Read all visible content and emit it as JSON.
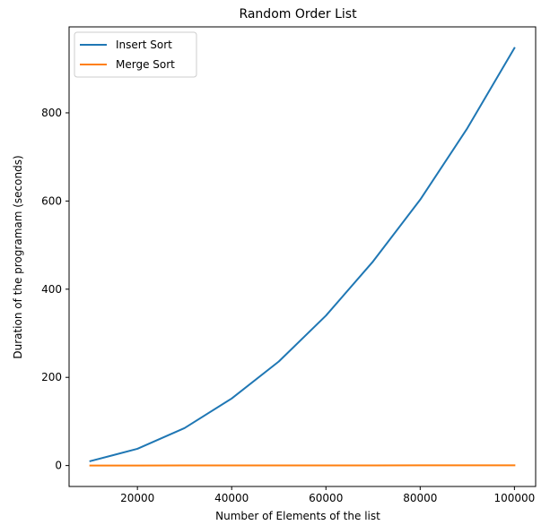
{
  "chart_data": {
    "type": "line",
    "title": "Random Order List",
    "xlabel": "Number of Elements of the list",
    "ylabel": "Duration of the programam (seconds)",
    "x": [
      10000,
      20000,
      30000,
      40000,
      50000,
      60000,
      70000,
      80000,
      90000,
      100000
    ],
    "xlim": [
      5500,
      104500
    ],
    "ylim": [
      -47.5,
      995
    ],
    "xticks": [
      20000,
      40000,
      60000,
      80000,
      100000
    ],
    "xtick_labels": [
      "20000",
      "40000",
      "60000",
      "80000",
      "100000"
    ],
    "yticks": [
      0,
      200,
      400,
      600,
      800
    ],
    "ytick_labels": [
      "0",
      "200",
      "400",
      "600",
      "800"
    ],
    "grid": false,
    "legend_position": "top-left",
    "series": [
      {
        "name": "Insert Sort",
        "color": "#1f77b4",
        "values": [
          10,
          38,
          85,
          152,
          236,
          340,
          463,
          603,
          765,
          947
        ]
      },
      {
        "name": "Merge Sort",
        "color": "#ff7f0e",
        "values": [
          0.05,
          0.1,
          0.15,
          0.2,
          0.25,
          0.3,
          0.35,
          0.4,
          0.45,
          0.5
        ]
      }
    ]
  }
}
